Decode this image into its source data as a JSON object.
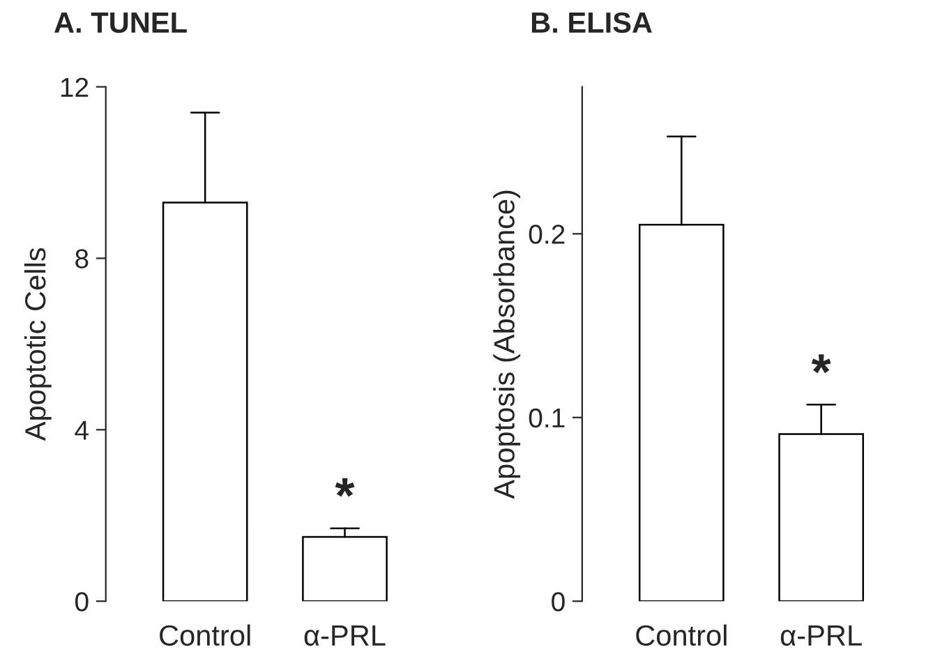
{
  "chart_data": [
    {
      "type": "bar",
      "title": "A. TUNEL",
      "ylabel": "Apoptotic Cells",
      "categories": [
        "Control",
        "α-PRL"
      ],
      "series": [
        {
          "color": "#ffffff",
          "values": [
            9.3,
            1.5
          ],
          "errors": [
            [
              9.3,
              11.4
            ],
            [
              1.5,
              1.7
            ]
          ]
        }
      ],
      "ylim": [
        0,
        12
      ],
      "yticks": [
        0,
        4,
        8,
        12
      ],
      "grid": false,
      "legend": false,
      "annotations": [
        {
          "text": "*",
          "x": "α-PRL",
          "y": 1.7
        }
      ]
    },
    {
      "type": "bar",
      "title": "B. ELISA",
      "ylabel": "Apoptosis (Absorbance)",
      "categories": [
        "Control",
        "α-PRL"
      ],
      "series": [
        {
          "color": "#ffffff",
          "values": [
            0.205,
            0.091
          ],
          "errors": [
            [
              0.205,
              0.253
            ],
            [
              0.091,
              0.107
            ]
          ]
        }
      ],
      "ylim": [
        0,
        0.28
      ],
      "yticks": [
        0,
        0.1,
        0.2
      ],
      "grid": false,
      "legend": false,
      "annotations": [
        {
          "text": "*",
          "x": "α-PRL",
          "y": 0.107
        }
      ]
    }
  ]
}
